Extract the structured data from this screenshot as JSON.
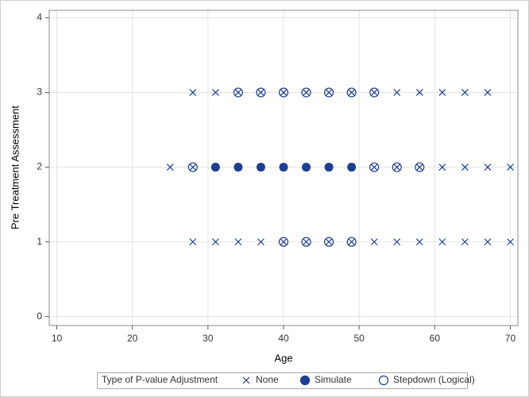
{
  "chart_data": {
    "type": "scatter",
    "x_label": "Age",
    "y_label": "Pre Treatment Assessment",
    "legend_title": "Type of P-value Adjustment",
    "legend_position": "bottom",
    "xlim": [
      9,
      71
    ],
    "ylim": [
      -0.12,
      4.1
    ],
    "xticks": [
      10,
      20,
      30,
      40,
      50,
      60,
      70
    ],
    "yticks": [
      0,
      1,
      2,
      3,
      4
    ],
    "grid": true,
    "series": [
      {
        "name": "None",
        "color": "#1c3f94",
        "marker": "x",
        "x": [
          28,
          31,
          34,
          37,
          40,
          43,
          46,
          49,
          52,
          55,
          58,
          61,
          64,
          67,
          25,
          28,
          31,
          34,
          37,
          40,
          43,
          46,
          49,
          52,
          55,
          58,
          61,
          64,
          67,
          70,
          28,
          31,
          34,
          37,
          40,
          43,
          46,
          49,
          52,
          55,
          58,
          61,
          64,
          67,
          70
        ],
        "y": [
          3,
          3,
          3,
          3,
          3,
          3,
          3,
          3,
          3,
          3,
          3,
          3,
          3,
          3,
          2,
          2,
          2,
          2,
          2,
          2,
          2,
          2,
          2,
          2,
          2,
          2,
          2,
          2,
          2,
          2,
          1,
          1,
          1,
          1,
          1,
          1,
          1,
          1,
          1,
          1,
          1,
          1,
          1,
          1,
          1
        ]
      },
      {
        "name": "Simulate",
        "color": "#1c3f94",
        "marker": "filled-circle",
        "x": [
          31,
          34,
          37,
          40,
          43,
          46,
          49
        ],
        "y": [
          2,
          2,
          2,
          2,
          2,
          2,
          2
        ]
      },
      {
        "name": "Stepdown (Logical)",
        "color": "#1c3f94",
        "marker": "open-circle",
        "x": [
          34,
          37,
          40,
          43,
          46,
          49,
          52,
          28,
          52,
          55,
          58,
          40,
          43,
          46,
          49
        ],
        "y": [
          3,
          3,
          3,
          3,
          3,
          3,
          3,
          2,
          2,
          2,
          2,
          1,
          1,
          1,
          1
        ]
      }
    ]
  }
}
